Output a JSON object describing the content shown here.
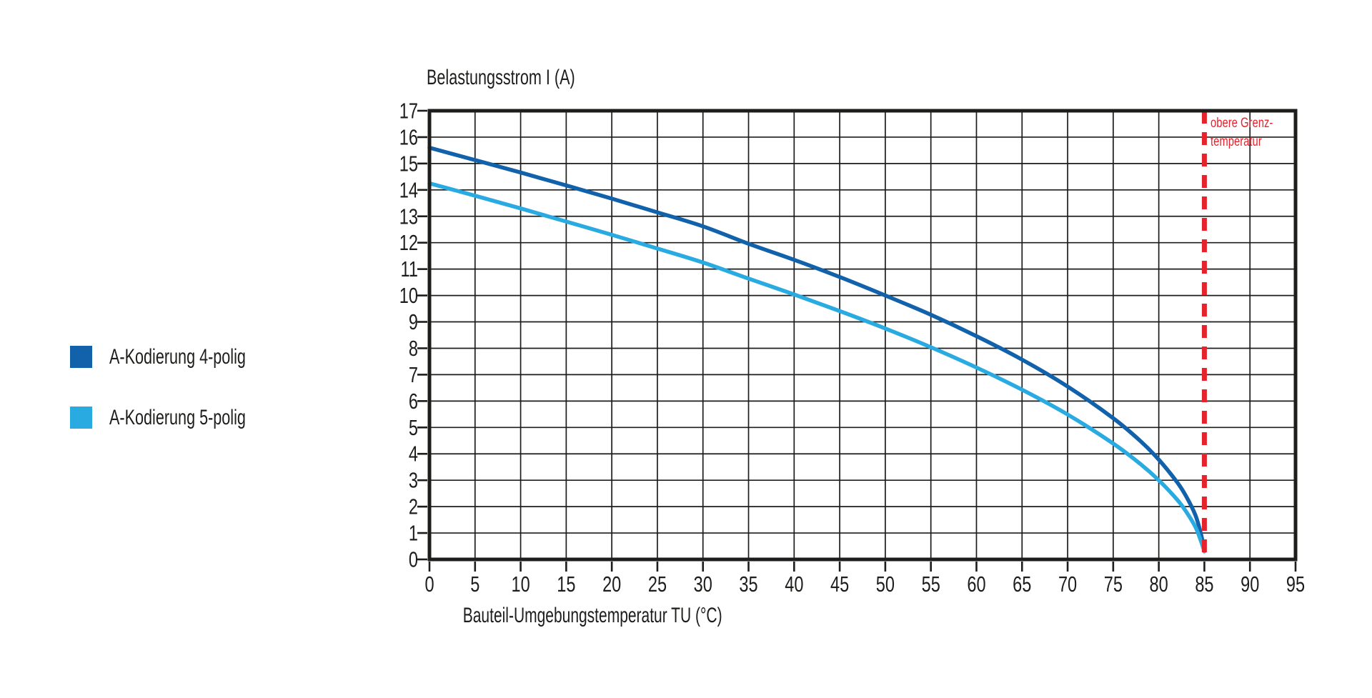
{
  "page": {
    "background": "#ffffff",
    "text_color": "#1d1d1b"
  },
  "chart_data": {
    "type": "line",
    "title": "Belastungsstrom I (A)",
    "xlabel": "Bauteil-Umgebungstemperatur TU (°C)",
    "ylabel": "Belastungsstrom I (A)",
    "xlim": [
      0,
      95
    ],
    "ylim": [
      0,
      17
    ],
    "x_ticks": [
      0,
      5,
      10,
      15,
      20,
      25,
      30,
      35,
      40,
      45,
      50,
      55,
      60,
      65,
      70,
      75,
      80,
      85,
      90,
      95
    ],
    "y_ticks": [
      0,
      1,
      2,
      3,
      4,
      5,
      6,
      7,
      8,
      9,
      10,
      11,
      12,
      13,
      14,
      15,
      16,
      17
    ],
    "grid": "on",
    "axis_color": "#1d1d1b",
    "legend_position": "left-outside",
    "series": [
      {
        "name": "A-Kodierung 4-polig",
        "color": "#1162ab",
        "points": [
          [
            0,
            15.6
          ],
          [
            5,
            15.13
          ],
          [
            10,
            14.66
          ],
          [
            15,
            14.17
          ],
          [
            20,
            13.67
          ],
          [
            25,
            13.15
          ],
          [
            30,
            12.62
          ],
          [
            35,
            11.96
          ],
          [
            40,
            11.35
          ],
          [
            45,
            10.7
          ],
          [
            50,
            10.0
          ],
          [
            55,
            9.27
          ],
          [
            60,
            8.46
          ],
          [
            65,
            7.57
          ],
          [
            70,
            6.55
          ],
          [
            75,
            5.35
          ],
          [
            78,
            4.48
          ],
          [
            80,
            3.78
          ],
          [
            82,
            2.93
          ],
          [
            83,
            2.39
          ],
          [
            84,
            1.69
          ],
          [
            84.6,
            1.0
          ],
          [
            85,
            0.35
          ]
        ]
      },
      {
        "name": "A-Kodierung 5-polig",
        "color": "#29abe2",
        "points": [
          [
            0,
            14.25
          ],
          [
            5,
            13.78
          ],
          [
            10,
            13.3
          ],
          [
            15,
            12.8
          ],
          [
            20,
            12.3
          ],
          [
            25,
            11.78
          ],
          [
            30,
            11.25
          ],
          [
            35,
            10.64
          ],
          [
            40,
            10.04
          ],
          [
            45,
            9.41
          ],
          [
            50,
            8.75
          ],
          [
            55,
            8.04
          ],
          [
            60,
            7.27
          ],
          [
            65,
            6.43
          ],
          [
            70,
            5.49
          ],
          [
            75,
            4.39
          ],
          [
            78,
            3.61
          ],
          [
            80,
            3.0
          ],
          [
            82,
            2.27
          ],
          [
            83,
            1.81
          ],
          [
            84,
            1.24
          ],
          [
            84.6,
            0.72
          ],
          [
            85,
            0.3
          ]
        ]
      }
    ],
    "limit_line": {
      "x": 85,
      "color": "#e4232c",
      "style": "dashed",
      "label_lines": [
        "obere Grenz-",
        "temperatur"
      ]
    }
  }
}
